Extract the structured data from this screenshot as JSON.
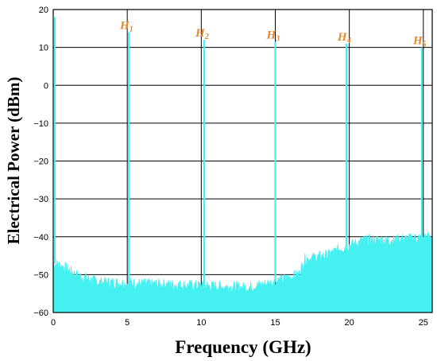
{
  "chart_data": {
    "type": "line",
    "title": "",
    "xlabel": "Frequency (GHz)",
    "ylabel": "Electrical Power (dBm)",
    "xlim": [
      0,
      25.6
    ],
    "ylim": [
      -60,
      20
    ],
    "x_ticks": [
      0,
      5,
      10,
      15,
      20,
      25
    ],
    "y_ticks": [
      20,
      10,
      0,
      -10,
      -20,
      -30,
      -40,
      -50,
      -60
    ],
    "x_tick_labels": [
      "0",
      "5",
      "10",
      "15",
      "20",
      "25"
    ],
    "y_tick_labels": [
      "20",
      "10",
      "0",
      "−10",
      "−20",
      "−30",
      "−40",
      "−50",
      "−60"
    ],
    "grid": true,
    "series_color": "#45F0F0",
    "noise_floor": [
      {
        "x": 0.0,
        "y": -47
      },
      {
        "x": 0.7,
        "y": -48
      },
      {
        "x": 1.5,
        "y": -50
      },
      {
        "x": 3.0,
        "y": -52
      },
      {
        "x": 6.0,
        "y": -52.5
      },
      {
        "x": 10.0,
        "y": -53
      },
      {
        "x": 13.0,
        "y": -53.5
      },
      {
        "x": 15.0,
        "y": -52
      },
      {
        "x": 16.6,
        "y": -50
      },
      {
        "x": 17.0,
        "y": -46
      },
      {
        "x": 18.5,
        "y": -45
      },
      {
        "x": 19.5,
        "y": -43
      },
      {
        "x": 21.0,
        "y": -41
      },
      {
        "x": 23.0,
        "y": -41
      },
      {
        "x": 25.6,
        "y": -40
      }
    ],
    "harmonics": [
      {
        "label": "H",
        "sub": "1",
        "x": 5.1,
        "y": 14
      },
      {
        "label": "H",
        "sub": "2",
        "x": 10.2,
        "y": 12
      },
      {
        "label": "H",
        "sub": "3",
        "x": 15.0,
        "y": 11.5
      },
      {
        "label": "H",
        "sub": "4",
        "x": 19.8,
        "y": 11
      },
      {
        "label": "H",
        "sub": "5",
        "x": 24.9,
        "y": 10
      }
    ],
    "dc_spike": {
      "x": 0.05,
      "y": 18
    }
  }
}
